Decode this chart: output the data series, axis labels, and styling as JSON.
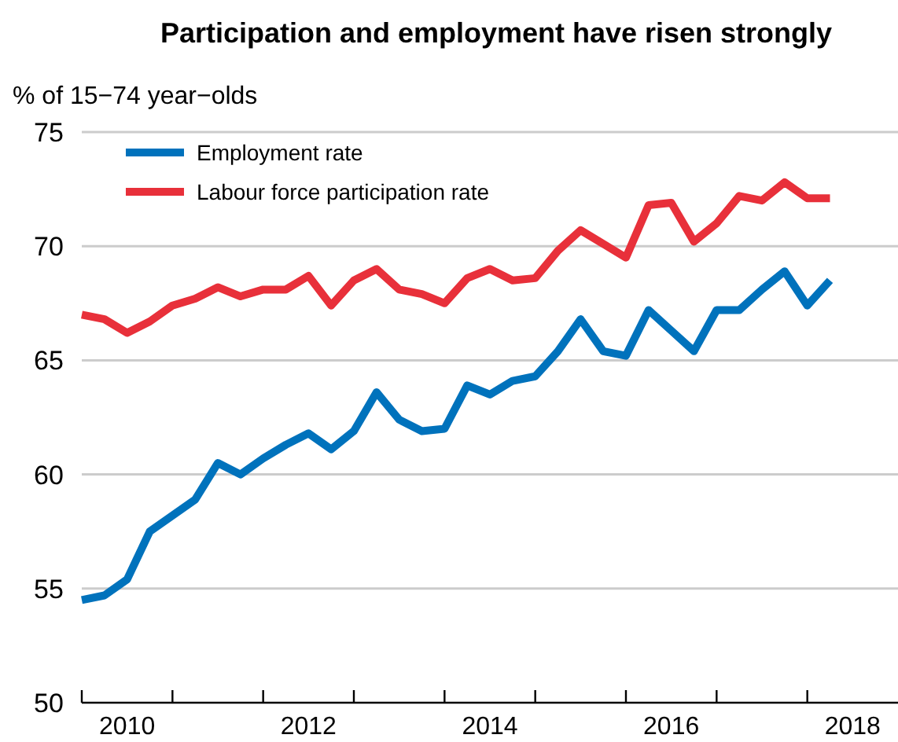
{
  "chart_data": {
    "type": "line",
    "title": "Participation and employment have risen strongly",
    "ylabel": "% of 15−74 year−olds",
    "x": [
      2010,
      2010.25,
      2010.5,
      2010.75,
      2011,
      2011.25,
      2011.5,
      2011.75,
      2012,
      2012.25,
      2012.5,
      2012.75,
      2013,
      2013.25,
      2013.5,
      2013.75,
      2014,
      2014.25,
      2014.5,
      2014.75,
      2015,
      2015.25,
      2015.5,
      2015.75,
      2016,
      2016.25,
      2016.5,
      2016.75,
      2017,
      2017.25,
      2017.5,
      2017.75,
      2018,
      2018.25
    ],
    "series": [
      {
        "name": "Employment rate",
        "color": "#0072bc",
        "values": [
          54.5,
          54.7,
          55.4,
          57.5,
          58.2,
          58.9,
          60.5,
          60.0,
          60.7,
          61.3,
          61.8,
          61.1,
          61.9,
          63.6,
          62.4,
          61.9,
          62.0,
          63.9,
          63.5,
          64.1,
          64.3,
          65.4,
          66.8,
          65.4,
          65.2,
          67.2,
          66.3,
          65.4,
          67.2,
          67.2,
          68.1,
          68.9,
          67.4,
          68.5
        ]
      },
      {
        "name": "Labour force participation rate",
        "color": "#e8303a",
        "values": [
          67.0,
          66.8,
          66.2,
          66.7,
          67.4,
          67.7,
          68.2,
          67.8,
          68.1,
          68.1,
          68.7,
          67.4,
          68.5,
          69.0,
          68.1,
          67.9,
          67.5,
          68.6,
          69.0,
          68.5,
          68.6,
          69.8,
          70.7,
          70.1,
          69.5,
          71.8,
          71.9,
          70.2,
          71.0,
          72.2,
          72.0,
          72.8,
          72.1,
          72.1
        ]
      }
    ],
    "xlim": [
      2010,
      2019
    ],
    "xticks": [
      {
        "value": 2010,
        "label": null
      },
      {
        "value": 2010.5,
        "label": "2010"
      },
      {
        "value": 2011,
        "label": null
      },
      {
        "value": 2012,
        "label": null
      },
      {
        "value": 2012.5,
        "label": "2012"
      },
      {
        "value": 2013,
        "label": null
      },
      {
        "value": 2014,
        "label": null
      },
      {
        "value": 2014.5,
        "label": "2014"
      },
      {
        "value": 2015,
        "label": null
      },
      {
        "value": 2016,
        "label": null
      },
      {
        "value": 2016.5,
        "label": "2016"
      },
      {
        "value": 2017,
        "label": null
      },
      {
        "value": 2018,
        "label": null
      },
      {
        "value": 2018.5,
        "label": "2018"
      }
    ],
    "ylim": [
      50,
      75
    ],
    "yticks": [
      50,
      55,
      60,
      65,
      70,
      75
    ],
    "grid": "y",
    "legend": "top left",
    "marker": "none",
    "line_style": "solid"
  }
}
